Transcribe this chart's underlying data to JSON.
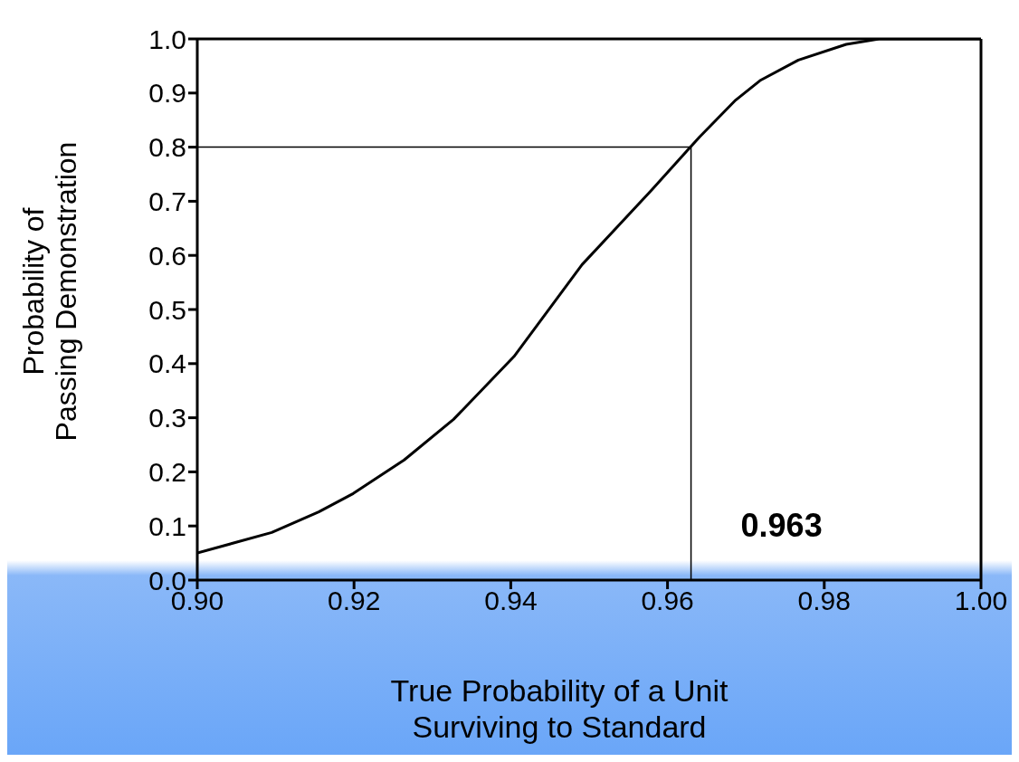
{
  "chart_data": {
    "type": "line",
    "xlabel": "True Probability of a Unit Surviving to Standard",
    "ylabel": "Probability of\nPassing Demonstration",
    "x": [
      0.9,
      0.9095,
      0.9155,
      0.9199,
      0.9264,
      0.9327,
      0.9404,
      0.9491,
      0.958,
      0.9641,
      0.9687,
      0.9718,
      0.9767,
      0.9828,
      0.987,
      1.0
    ],
    "series": [
      {
        "color": "#000000",
        "values": [
          0.05,
          0.088,
          0.126,
          0.16,
          0.222,
          0.297,
          0.413,
          0.583,
          0.721,
          0.819,
          0.887,
          0.923,
          0.961,
          0.99,
          1.0,
          1.0
        ]
      }
    ],
    "xlim": [
      0.9,
      1.0
    ],
    "xticks": [
      {
        "value": 0.9,
        "label": "0.90"
      },
      {
        "value": 0.92,
        "label": "0.92"
      },
      {
        "value": 0.94,
        "label": "0.94"
      },
      {
        "value": 0.96,
        "label": "0.96"
      },
      {
        "value": 0.98,
        "label": "0.98"
      },
      {
        "value": 1.0,
        "label": "1.00"
      }
    ],
    "ylim": [
      0,
      1
    ],
    "yticks": [
      {
        "value": 0,
        "label": "0.0"
      },
      {
        "value": 0.1,
        "label": "0.1"
      },
      {
        "value": 0.2,
        "label": "0.2"
      },
      {
        "value": 0.3,
        "label": "0.3"
      },
      {
        "value": 0.4,
        "label": "0.4"
      },
      {
        "value": 0.5,
        "label": "0.5"
      },
      {
        "value": 0.6,
        "label": "0.6"
      },
      {
        "value": 0.7,
        "label": "0.7"
      },
      {
        "value": 0.8,
        "label": "0.8"
      },
      {
        "value": 0.9,
        "label": "0.9"
      },
      {
        "value": 1.0,
        "label": "1.0"
      }
    ],
    "ref_lines": [
      {
        "axis": "y",
        "value": 0.8
      },
      {
        "axis": "x",
        "value": 0.963,
        "label": "0.963"
      }
    ],
    "line_style": "solid"
  }
}
